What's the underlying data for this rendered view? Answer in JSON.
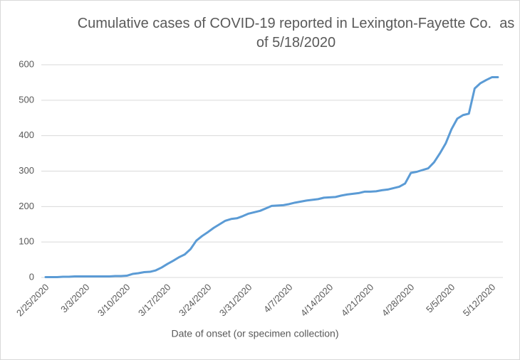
{
  "chart_data": {
    "type": "line",
    "title": "Cumulative cases of COVID-19 reported in Lexington-Fayette Co.  as of 5/18/2020",
    "x_label": "Date of onset (or specimen collection)",
    "categories": [
      "2/25/2020",
      null,
      null,
      null,
      null,
      null,
      null,
      "3/3/2020",
      null,
      null,
      null,
      null,
      null,
      null,
      "3/10/2020",
      null,
      null,
      null,
      null,
      null,
      null,
      "3/17/2020",
      null,
      null,
      null,
      null,
      null,
      null,
      "3/24/2020",
      null,
      null,
      null,
      null,
      null,
      null,
      "3/31/2020",
      null,
      null,
      null,
      null,
      null,
      null,
      "4/7/2020",
      null,
      null,
      null,
      null,
      null,
      null,
      "4/14/2020",
      null,
      null,
      null,
      null,
      null,
      null,
      "4/21/2020",
      null,
      null,
      null,
      null,
      null,
      null,
      "4/28/2020",
      null,
      null,
      null,
      null,
      null,
      null,
      "5/5/2020",
      null,
      null,
      null,
      null,
      null,
      null,
      "5/12/2020",
      null
    ],
    "series": [
      {
        "name": "Cumulative cases",
        "color": "#5b9bd5",
        "values": [
          1,
          1,
          1,
          2,
          2,
          3,
          3,
          3,
          3,
          3,
          3,
          3,
          4,
          4,
          5,
          10,
          12,
          15,
          16,
          20,
          28,
          38,
          47,
          57,
          65,
          80,
          104,
          117,
          128,
          140,
          150,
          160,
          165,
          167,
          173,
          180,
          184,
          188,
          195,
          202,
          203,
          204,
          207,
          211,
          214,
          217,
          219,
          221,
          225,
          226,
          227,
          231,
          234,
          236,
          238,
          242,
          242,
          243,
          246,
          248,
          252,
          256,
          265,
          295,
          298,
          303,
          308,
          325,
          350,
          378,
          418,
          448,
          458,
          462,
          533,
          548,
          557,
          565,
          565
        ]
      }
    ],
    "ylim": [
      0,
      600
    ],
    "yticks": [
      0,
      100,
      200,
      300,
      400,
      500,
      600
    ],
    "grid": true
  }
}
